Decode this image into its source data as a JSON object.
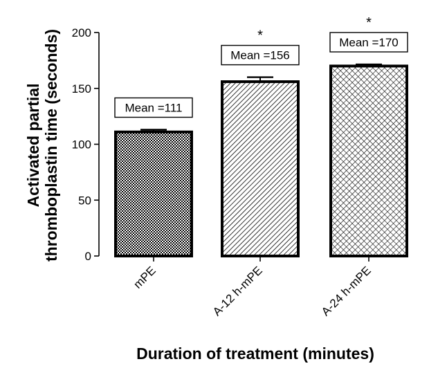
{
  "chart_data": {
    "type": "bar",
    "title": "",
    "xlabel": "Duration of treatment (minutes)",
    "ylabel_lines": [
      "Activated partial",
      "thromboplastin time (seconds)"
    ],
    "categories": [
      "mPE",
      "A-12 h-mPE",
      "A-24 h-mPE"
    ],
    "values": [
      111,
      156,
      170
    ],
    "error": [
      2,
      4,
      1.5
    ],
    "ylim": [
      0,
      200
    ],
    "yticks": [
      "0",
      "50",
      "100",
      "150",
      "200"
    ],
    "annotations": [
      "Mean =111",
      "Mean =156",
      "Mean =170"
    ],
    "significance": [
      "",
      "*",
      "*"
    ],
    "patterns": [
      "checkerboard",
      "diagonal-stripes",
      "crosshatch"
    ],
    "grid": false,
    "legend": "none",
    "colors": {
      "bar_edge": "#000000",
      "fill_ink": "#000000",
      "background": "#ffffff"
    }
  }
}
